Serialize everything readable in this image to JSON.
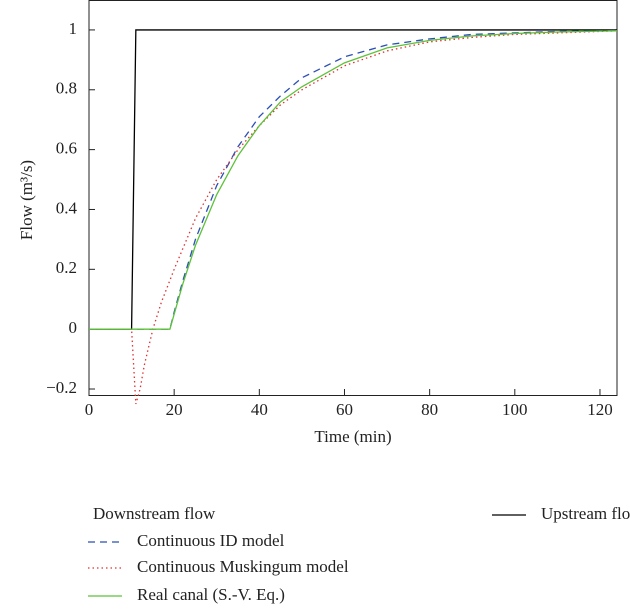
{
  "chart_data": {
    "type": "line",
    "xlabel": "Time (min)",
    "ylabel": "Flow (m³/s)",
    "xlim": [
      0,
      124
    ],
    "xticks": [
      0,
      20,
      40,
      60,
      80,
      100,
      120
    ],
    "ylim": [
      -0.22,
      1.1
    ],
    "yticks": [
      {
        "value": -0.2,
        "label": "−0.2"
      },
      0,
      0.2,
      0.4,
      0.6,
      0.8,
      1
    ],
    "legend_title": "Downstream flow",
    "series": [
      {
        "name": "Upstream flow",
        "color": "#000000",
        "dash": "none",
        "x": [
          0,
          10,
          11,
          124
        ],
        "values": [
          0,
          0,
          1,
          1
        ]
      },
      {
        "name": "Continuous ID model",
        "color": "#2b4fb5",
        "dash": "7,5",
        "x": [
          0,
          5,
          10,
          15,
          19,
          20,
          22,
          25,
          30,
          35,
          40,
          45,
          50,
          60,
          70,
          80,
          90,
          100,
          110,
          120,
          124
        ],
        "values": [
          0,
          0,
          0,
          0,
          0,
          0.057,
          0.16,
          0.3,
          0.48,
          0.61,
          0.71,
          0.78,
          0.84,
          0.91,
          0.95,
          0.97,
          0.985,
          0.99,
          0.995,
          0.997,
          0.998
        ]
      },
      {
        "name": "Continuous Muskingum model",
        "color": "#e03030",
        "dash": "1.5,3",
        "x": [
          0,
          5,
          10,
          11,
          12,
          13,
          15,
          17,
          20,
          25,
          30,
          35,
          40,
          45,
          50,
          60,
          70,
          80,
          90,
          100,
          110,
          120,
          124
        ],
        "values": [
          0,
          0,
          0,
          -0.25,
          -0.2,
          -0.12,
          0,
          0.09,
          0.2,
          0.37,
          0.5,
          0.6,
          0.68,
          0.75,
          0.8,
          0.88,
          0.93,
          0.96,
          0.975,
          0.985,
          0.99,
          0.995,
          0.997
        ]
      },
      {
        "name": "Real canal (S.-V. Eq.)",
        "color": "#5cc23a",
        "dash": "none",
        "x": [
          0,
          5,
          10,
          15,
          19,
          20,
          22,
          25,
          30,
          35,
          40,
          45,
          50,
          60,
          70,
          80,
          90,
          100,
          110,
          120,
          124
        ],
        "values": [
          0,
          0,
          0,
          0,
          0,
          0.05,
          0.15,
          0.28,
          0.45,
          0.58,
          0.68,
          0.76,
          0.81,
          0.89,
          0.94,
          0.965,
          0.98,
          0.988,
          0.993,
          0.996,
          0.997
        ]
      }
    ]
  }
}
